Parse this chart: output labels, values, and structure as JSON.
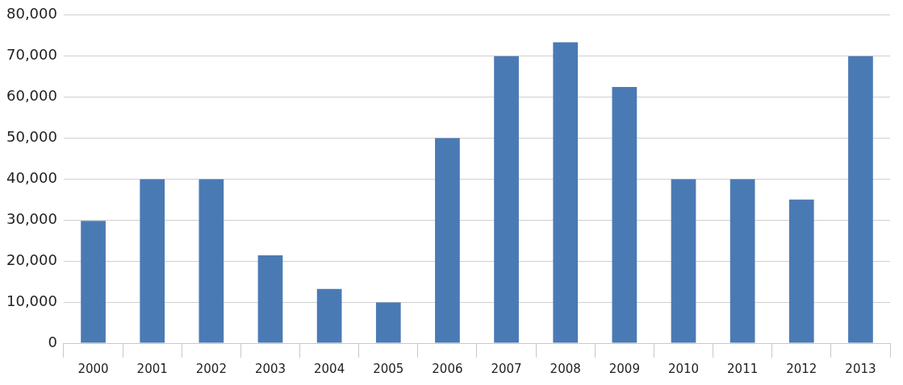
{
  "chart_data": {
    "type": "bar",
    "categories": [
      "2000",
      "2001",
      "2002",
      "2003",
      "2004",
      "2005",
      "2006",
      "2007",
      "2008",
      "2009",
      "2010",
      "2011",
      "2012",
      "2013"
    ],
    "values": [
      29800,
      40000,
      40000,
      21400,
      13200,
      9900,
      50000,
      70000,
      73400,
      62500,
      40000,
      40000,
      35000,
      70000
    ],
    "color": "#4a7ab4",
    "ylim": [
      0,
      80000
    ],
    "yticks": [
      {
        "value": 0,
        "label": "0"
      },
      {
        "value": 10000,
        "label": "10,000"
      },
      {
        "value": 20000,
        "label": "20,000"
      },
      {
        "value": 30000,
        "label": "30,000"
      },
      {
        "value": 40000,
        "label": "40,000"
      },
      {
        "value": 50000,
        "label": "50,000"
      },
      {
        "value": 60000,
        "label": "60,000"
      },
      {
        "value": 70000,
        "label": "70,000"
      },
      {
        "value": 80000,
        "label": "80,000"
      }
    ],
    "grid": "y"
  }
}
